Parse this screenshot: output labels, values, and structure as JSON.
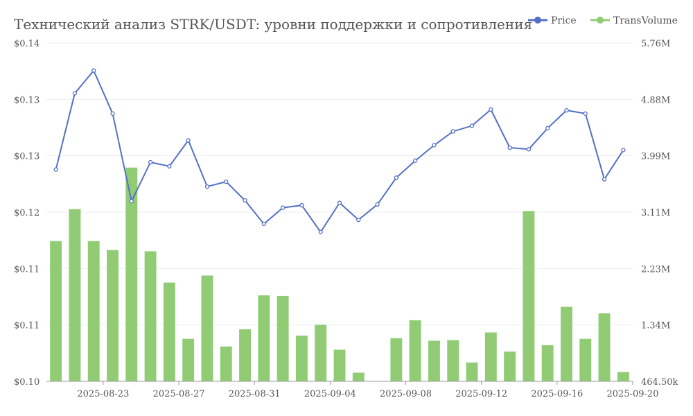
{
  "chart_data": {
    "type": "bar",
    "title": "Технический анализ STRK/USDT: уровни поддержки и сопротивления",
    "legend": {
      "placement": "top-right",
      "items": [
        {
          "name": "Price",
          "color": "#5470c6",
          "marker": "line"
        },
        {
          "name": "TransVolume",
          "color": "#91cc75",
          "marker": "line"
        }
      ]
    },
    "x": [
      "2025-08-21",
      "2025-08-22",
      "2025-08-23",
      "2025-08-24",
      "2025-08-25",
      "2025-08-26",
      "2025-08-27",
      "2025-08-28",
      "2025-08-29",
      "2025-08-30",
      "2025-08-31",
      "2025-09-01",
      "2025-09-02",
      "2025-09-03",
      "2025-09-04",
      "2025-09-05",
      "2025-09-06",
      "2025-09-07",
      "2025-09-08",
      "2025-09-09",
      "2025-09-10",
      "2025-09-11",
      "2025-09-12",
      "2025-09-13",
      "2025-09-14",
      "2025-09-15",
      "2025-09-16",
      "2025-09-17",
      "2025-09-18",
      "2025-09-19",
      "2025-09-20"
    ],
    "x_tick_labels": [
      "2025-08-23",
      "2025-08-27",
      "2025-08-31",
      "2025-09-04",
      "2025-09-08",
      "2025-09-12",
      "2025-09-16",
      "2025-09-20"
    ],
    "y_left": {
      "tick_labels": [
        "$0.10",
        "$0.11",
        "$0.11",
        "$0.12",
        "$0.13",
        "$0.13",
        "$0.14"
      ],
      "range": [
        0.1,
        0.1417
      ]
    },
    "y_right": {
      "tick_labels": [
        "464.50k",
        "1.34M",
        "2.23M",
        "3.11M",
        "3.99M",
        "4.88M",
        "5.76M"
      ],
      "range": [
        464500,
        5760000
      ]
    },
    "grid": true,
    "series": [
      {
        "name": "Price",
        "type": "line",
        "axis": "left",
        "color": "#5470c6",
        "values": [
          0.1261,
          0.1355,
          0.1383,
          0.133,
          0.1222,
          0.127,
          0.1265,
          0.1297,
          0.124,
          0.1246,
          0.1223,
          0.1194,
          0.1214,
          0.1217,
          0.1184,
          0.122,
          0.1199,
          0.1218,
          0.1251,
          0.1272,
          0.1291,
          0.1308,
          0.1315,
          0.1335,
          0.1288,
          0.1286,
          0.1312,
          0.1334,
          0.133,
          0.1249,
          0.1285
        ]
      },
      {
        "name": "TransVolume",
        "type": "bar",
        "axis": "right",
        "color": "#91cc75",
        "values": [
          2660000,
          3160000,
          2660000,
          2520000,
          3810000,
          2500000,
          2010000,
          1130000,
          2120000,
          1010000,
          1280000,
          1810000,
          1800000,
          1180000,
          1350000,
          960000,
          600000,
          464500,
          1140000,
          1420000,
          1100000,
          1110000,
          760000,
          1230000,
          930000,
          3130000,
          1030000,
          1630000,
          1130000,
          1530000,
          610000
        ]
      }
    ]
  }
}
